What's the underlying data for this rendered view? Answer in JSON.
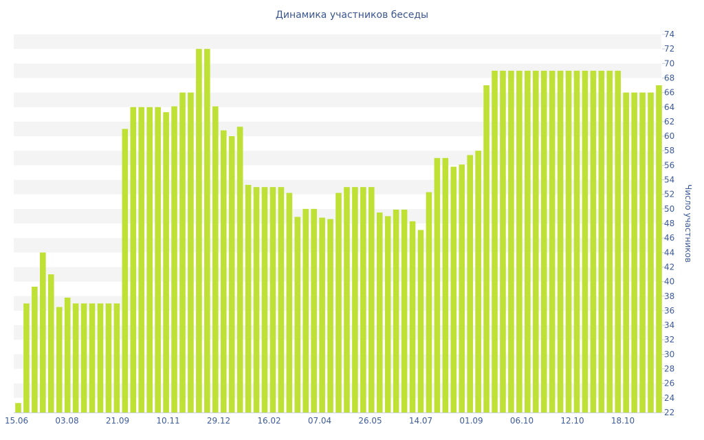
{
  "chart_data": {
    "type": "bar",
    "title": "Динамика участников беседы",
    "ylabel": "Число участников",
    "ylim": [
      22,
      74
    ],
    "y_ticks": [
      22,
      24,
      26,
      28,
      30,
      32,
      34,
      36,
      38,
      40,
      42,
      44,
      46,
      48,
      50,
      52,
      54,
      56,
      58,
      60,
      62,
      64,
      66,
      68,
      70,
      72,
      74
    ],
    "x_tick_labels": [
      "15.06",
      "03.08",
      "21.09",
      "10.11",
      "29.12",
      "16.02",
      "07.04",
      "26.05",
      "14.07",
      "01.09",
      "06.10",
      "12.10",
      "18.10"
    ],
    "grid": "horizontal bands",
    "y_axis_side": "right",
    "color": "#bfe034",
    "values": [
      23.3,
      37,
      39.3,
      44,
      41,
      36.5,
      37.8,
      37,
      37,
      37,
      37,
      37,
      37,
      61,
      64,
      64,
      64,
      64,
      63.3,
      64.1,
      66,
      66,
      72,
      72,
      64.1,
      60.8,
      60,
      61.3,
      53.3,
      53,
      53,
      53,
      53,
      52.2,
      48.9,
      50,
      50,
      48.8,
      48.6,
      52.2,
      53,
      53,
      53,
      53,
      49.5,
      49,
      49.9,
      49.9,
      48.3,
      47.1,
      52.3,
      57,
      57,
      55.8,
      56.1,
      57.4,
      58,
      67,
      69,
      69,
      69,
      69,
      69,
      69,
      69,
      69,
      69,
      69,
      69,
      69,
      69,
      69,
      69,
      69,
      66,
      66,
      66,
      66,
      67
    ]
  }
}
